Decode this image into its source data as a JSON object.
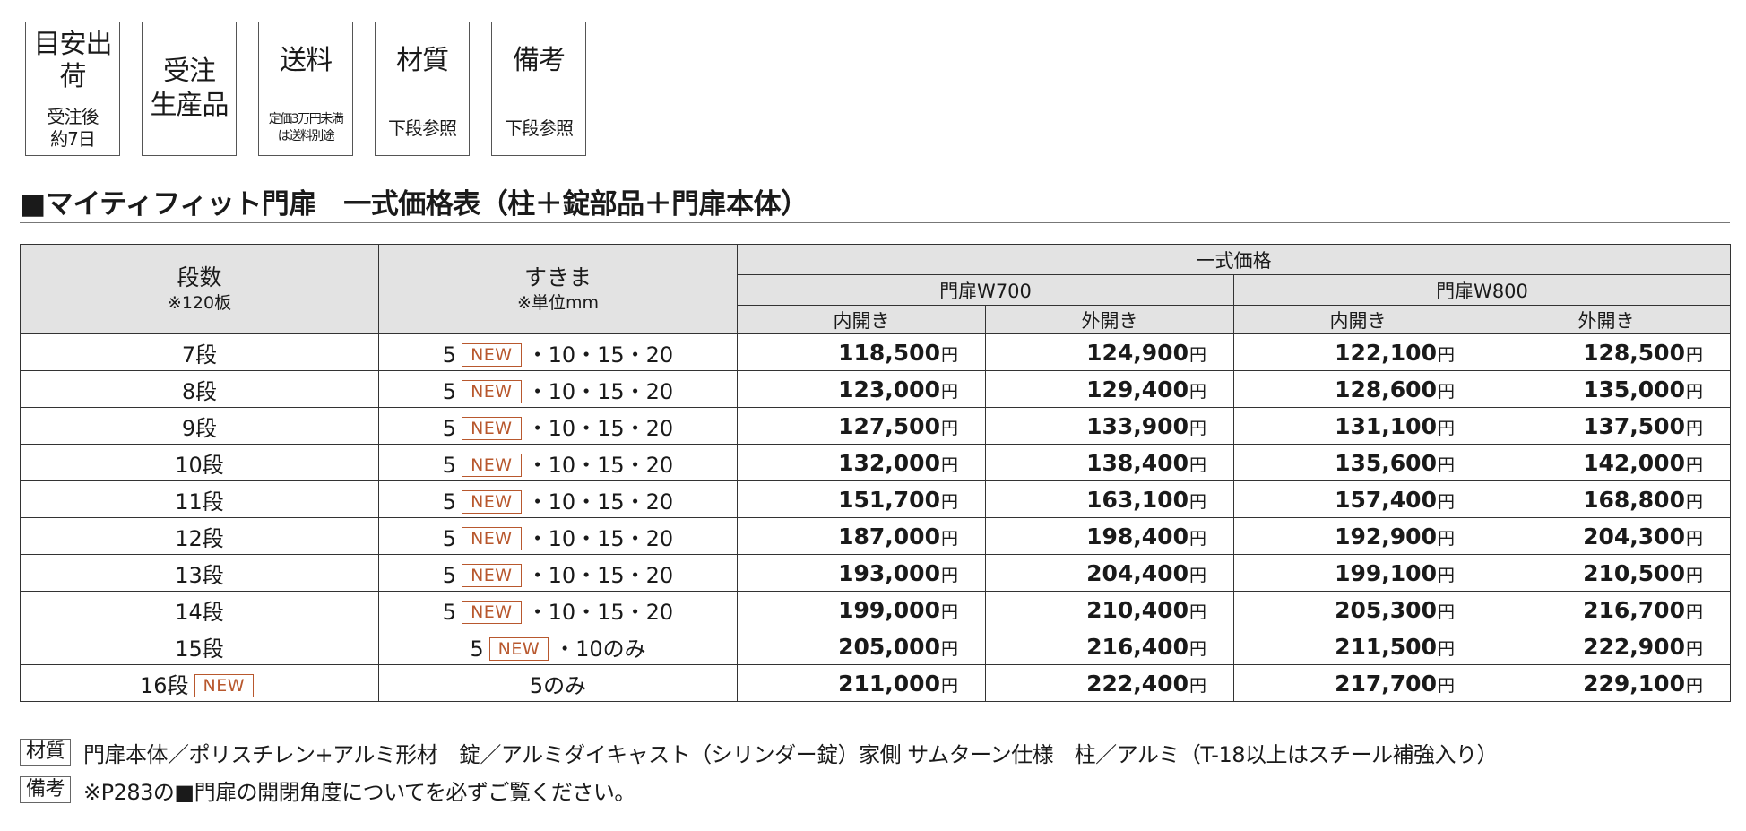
{
  "info_boxes": [
    {
      "top": "目安出荷",
      "bottom": "受注後\n約7日"
    },
    {
      "full": "受注\n生産品"
    },
    {
      "top": "送料",
      "bottom": "定価3万円未満\nは送料別途"
    },
    {
      "top": "材質",
      "bottom": "下段参照"
    },
    {
      "top": "備考",
      "bottom": "下段参照"
    }
  ],
  "section_title": "■マイティフィット門扉　一式価格表（柱＋錠部品＋門扉本体）",
  "table": {
    "col_dansu": "段数",
    "col_dansu_note": "※120板",
    "col_sukima": "すきま",
    "col_sukima_note": "※単位mm",
    "group_total": "一式価格",
    "group_w700": "門扉W700",
    "group_w800": "門扉W800",
    "inner": "内開き",
    "outer": "外開き",
    "new_badge": "NEW",
    "yen": "円",
    "rows": [
      {
        "dan": "7段",
        "sukima_pre": "5",
        "sukima_post": "・10・15・20",
        "p": [
          "118,500",
          "124,900",
          "122,100",
          "128,500"
        ]
      },
      {
        "dan": "8段",
        "sukima_pre": "5",
        "sukima_post": "・10・15・20",
        "p": [
          "123,000",
          "129,400",
          "128,600",
          "135,000"
        ]
      },
      {
        "dan": "9段",
        "sukima_pre": "5",
        "sukima_post": "・10・15・20",
        "p": [
          "127,500",
          "133,900",
          "131,100",
          "137,500"
        ]
      },
      {
        "dan": "10段",
        "sukima_pre": "5",
        "sukima_post": "・10・15・20",
        "p": [
          "132,000",
          "138,400",
          "135,600",
          "142,000"
        ]
      },
      {
        "dan": "11段",
        "sukima_pre": "5",
        "sukima_post": "・10・15・20",
        "p": [
          "151,700",
          "163,100",
          "157,400",
          "168,800"
        ]
      },
      {
        "dan": "12段",
        "sukima_pre": "5",
        "sukima_post": "・10・15・20",
        "p": [
          "187,000",
          "198,400",
          "192,900",
          "204,300"
        ]
      },
      {
        "dan": "13段",
        "sukima_pre": "5",
        "sukima_post": "・10・15・20",
        "p": [
          "193,000",
          "204,400",
          "199,100",
          "210,500"
        ]
      },
      {
        "dan": "14段",
        "sukima_pre": "5",
        "sukima_post": "・10・15・20",
        "p": [
          "199,000",
          "210,400",
          "205,300",
          "216,700"
        ]
      },
      {
        "dan": "15段",
        "sukima_pre": "5",
        "sukima_post": "・10のみ",
        "p": [
          "205,000",
          "216,400",
          "211,500",
          "222,900"
        ]
      },
      {
        "dan": "16段",
        "dan_new": true,
        "sukima_only": "5のみ",
        "p": [
          "211,000",
          "222,400",
          "217,700",
          "229,100"
        ]
      }
    ]
  },
  "notes": [
    {
      "label": "材質",
      "text": "門扉本体／ポリスチレン+アルミ形材　錠／アルミダイキャスト（シリンダー錠）家側 サムターン仕様　柱／アルミ（T-18以上はスチール補強入り）"
    },
    {
      "label": "備考",
      "text": "※P283の■門扉の開閉角度についてを必ずご覧ください。"
    }
  ],
  "colors": {
    "badge": "#b8582e",
    "header_bg": "#e3e3e3",
    "border": "#333333"
  }
}
